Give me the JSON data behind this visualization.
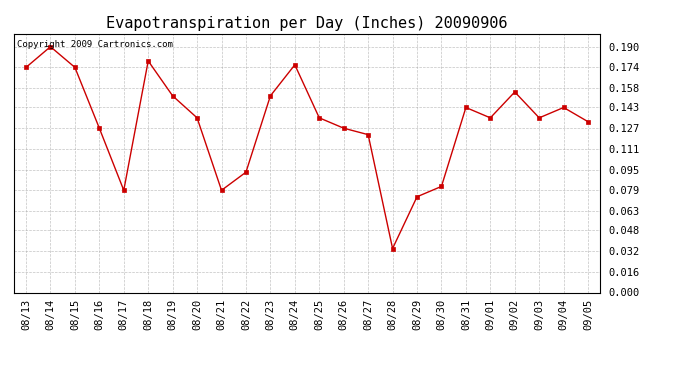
{
  "title": "Evapotranspiration per Day (Inches) 20090906",
  "copyright_text": "Copyright 2009 Cartronics.com",
  "dates": [
    "08/13",
    "08/14",
    "08/15",
    "08/16",
    "08/17",
    "08/18",
    "08/19",
    "08/20",
    "08/21",
    "08/22",
    "08/23",
    "08/24",
    "08/25",
    "08/26",
    "08/27",
    "08/28",
    "08/29",
    "08/30",
    "08/31",
    "09/01",
    "09/02",
    "09/03",
    "09/04",
    "09/05"
  ],
  "values": [
    0.174,
    0.19,
    0.174,
    0.127,
    0.079,
    0.179,
    0.152,
    0.135,
    0.079,
    0.093,
    0.152,
    0.176,
    0.135,
    0.127,
    0.122,
    0.034,
    0.074,
    0.082,
    0.143,
    0.135,
    0.155,
    0.135,
    0.143,
    0.132
  ],
  "line_color": "#cc0000",
  "marker_color": "#cc0000",
  "bg_color": "#ffffff",
  "plot_bg_color": "#ffffff",
  "grid_color": "#aaaaaa",
  "yticks": [
    0.0,
    0.016,
    0.032,
    0.048,
    0.063,
    0.079,
    0.095,
    0.111,
    0.127,
    0.143,
    0.158,
    0.174,
    0.19
  ],
  "ylim": [
    0.0,
    0.2
  ],
  "title_fontsize": 11,
  "tick_fontsize": 7.5,
  "copyright_fontsize": 6.5
}
